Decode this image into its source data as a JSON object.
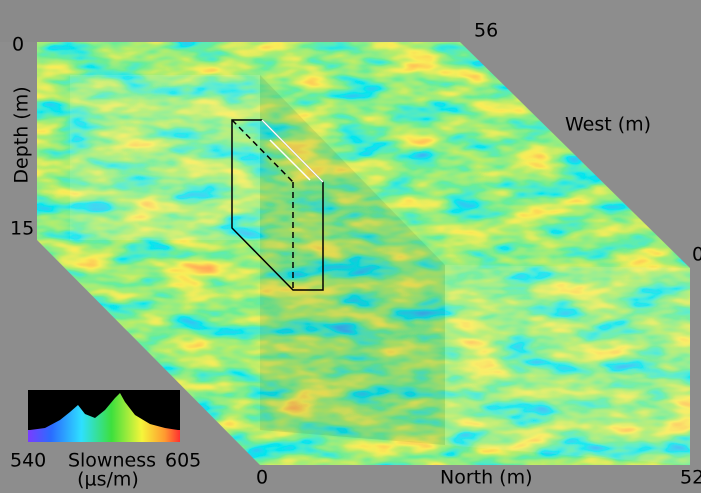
{
  "volume": {
    "depth_label": "Depth (m)",
    "depth_ticks": [
      "0",
      "15"
    ],
    "west_label": "West (m)",
    "west_ticks": [
      "56",
      "0"
    ],
    "north_label": "North (m)",
    "north_ticks": [
      "0",
      "52"
    ]
  },
  "colorbar": {
    "min": "540",
    "label": "Slowness",
    "max": "605",
    "unit": "(µs/m)"
  }
}
